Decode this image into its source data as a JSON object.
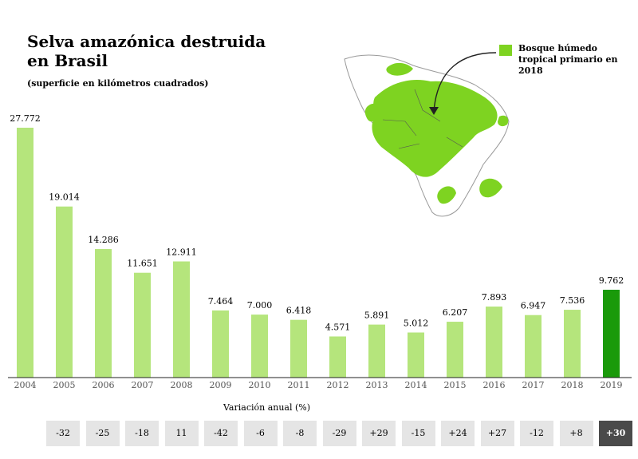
{
  "title": "Selva amazónica destruida en Brasil",
  "subtitle": "(superficie en kilómetros cuadrados)",
  "legend": {
    "label": "Bosque húmedo tropical primario en 2018",
    "color": "#7ed321"
  },
  "colors": {
    "bar": "#b5e57c",
    "bar_highlight": "#1a9a0a",
    "map": "#7ed321",
    "land": "#ffffff"
  },
  "variation": {
    "title": "Variación anual (%)",
    "values": [
      "-32",
      "-25",
      "-18",
      "11",
      "-42",
      "-6",
      "-8",
      "-29",
      "+29",
      "-15",
      "+24",
      "+27",
      "-12",
      "+8",
      "+30"
    ]
  },
  "chart_data": {
    "type": "bar",
    "title": "Selva amazónica destruida en Brasil",
    "subtitle": "(superficie en kilómetros cuadrados)",
    "categories": [
      "2004",
      "2005",
      "2006",
      "2007",
      "2008",
      "2009",
      "2010",
      "2011",
      "2012",
      "2013",
      "2014",
      "2015",
      "2016",
      "2017",
      "2018",
      "2019"
    ],
    "values": [
      27772,
      19014,
      14286,
      11651,
      12911,
      7464,
      7000,
      6418,
      4571,
      5891,
      5012,
      6207,
      7893,
      6947,
      7536,
      9762
    ],
    "value_labels": [
      "27.772",
      "19.014",
      "14.286",
      "11.651",
      "12.911",
      "7.464",
      "7.000",
      "6.418",
      "4.571",
      "5.891",
      "5.012",
      "6.207",
      "7.893",
      "6.947",
      "7.536",
      "9.762"
    ],
    "highlight_index": 15,
    "ylim": [
      0,
      28000
    ],
    "grid": false
  }
}
